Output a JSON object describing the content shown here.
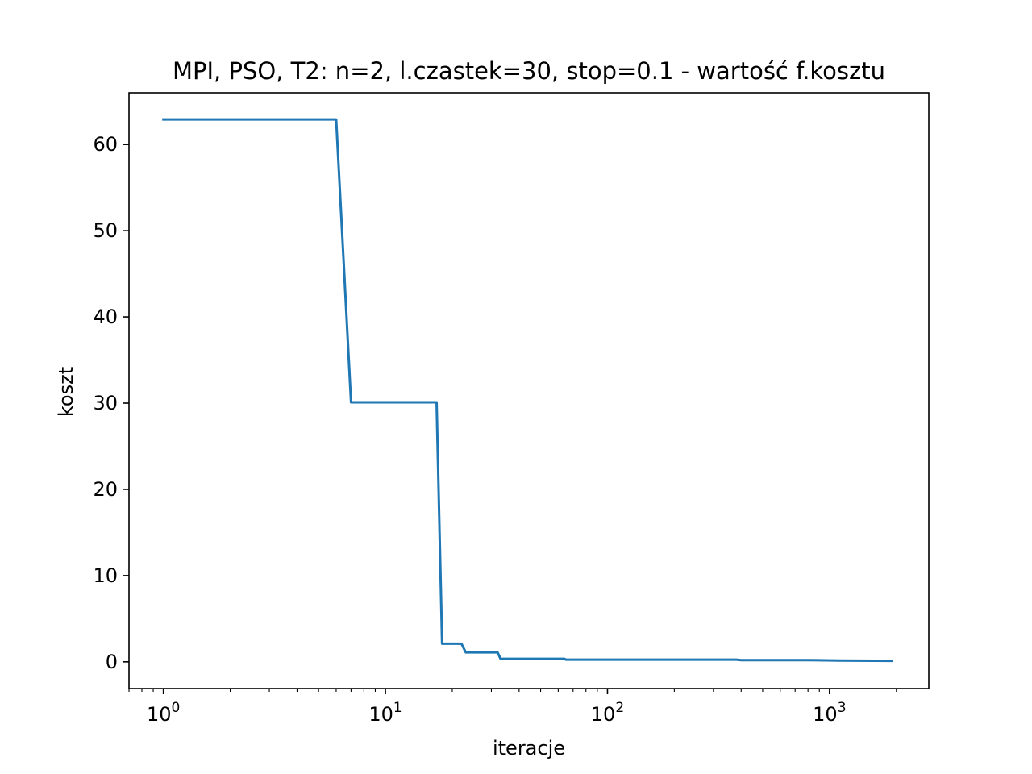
{
  "chart_data": {
    "type": "line",
    "title": "MPI, PSO, T2: n=2, l.czastek=30, stop=0.1 - wartość f.kosztu",
    "xlabel": "iteracje",
    "ylabel": "koszt",
    "xscale": "log",
    "xlim": [
      0.7,
      2800
    ],
    "ylim": [
      -3.1,
      66
    ],
    "grid": false,
    "legend": "none",
    "x_ticks": [
      {
        "value": 1,
        "base": "10",
        "exp": "0"
      },
      {
        "value": 10,
        "base": "10",
        "exp": "1"
      },
      {
        "value": 100,
        "base": "10",
        "exp": "2"
      },
      {
        "value": 1000,
        "base": "10",
        "exp": "3"
      }
    ],
    "y_ticks": [
      0,
      10,
      20,
      30,
      40,
      50,
      60
    ],
    "series": [
      {
        "color": "#1f77b4",
        "x": [
          1,
          6,
          7,
          17,
          18,
          22,
          23,
          32,
          33,
          64,
          65,
          380,
          400,
          800,
          1100,
          1900
        ],
        "y": [
          62.9,
          62.9,
          30.1,
          30.1,
          2.1,
          2.1,
          1.1,
          1.1,
          0.35,
          0.35,
          0.25,
          0.25,
          0.2,
          0.2,
          0.15,
          0.12
        ]
      }
    ]
  }
}
